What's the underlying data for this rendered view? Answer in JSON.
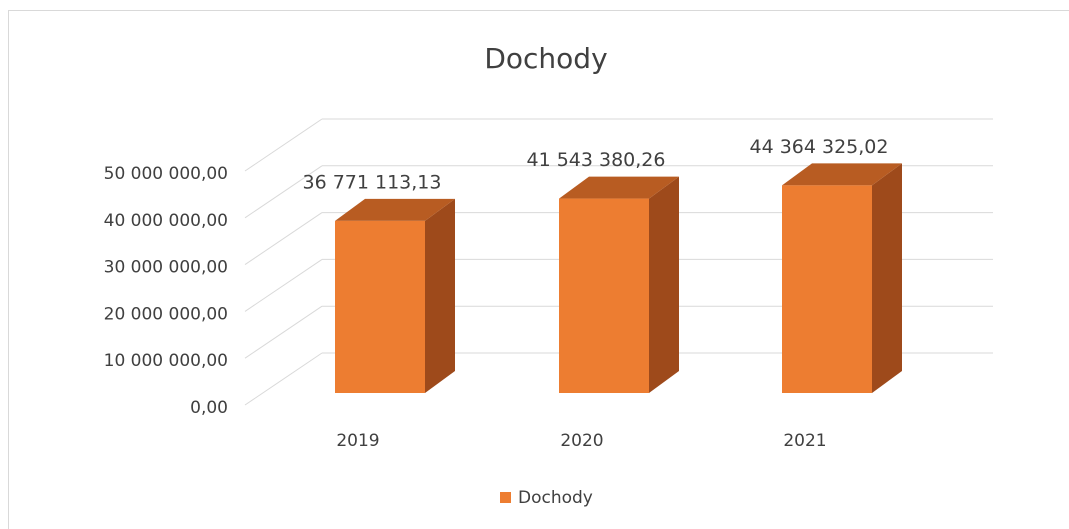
{
  "chart_data": {
    "type": "bar3d",
    "title": "Dochody",
    "categories": [
      "2019",
      "2020",
      "2021"
    ],
    "series": [
      {
        "name": "Dochody",
        "color": "#ED7D31",
        "values": [
          36771113.13,
          41543380.26,
          44364325.02
        ],
        "value_labels": [
          "36 771 113,13",
          "41 543 380,26",
          "44 364 325,02"
        ]
      }
    ],
    "ylim": [
      0,
      50000000
    ],
    "yticks": [
      {
        "value": 0,
        "label": "0,00"
      },
      {
        "value": 10000000,
        "label": "10 000 000,00"
      },
      {
        "value": 20000000,
        "label": "20 000 000,00"
      },
      {
        "value": 30000000,
        "label": "30 000 000,00"
      },
      {
        "value": 40000000,
        "label": "40 000 000,00"
      },
      {
        "value": 50000000,
        "label": "50 000 000,00"
      }
    ],
    "grid": true,
    "legend": "bottom"
  }
}
